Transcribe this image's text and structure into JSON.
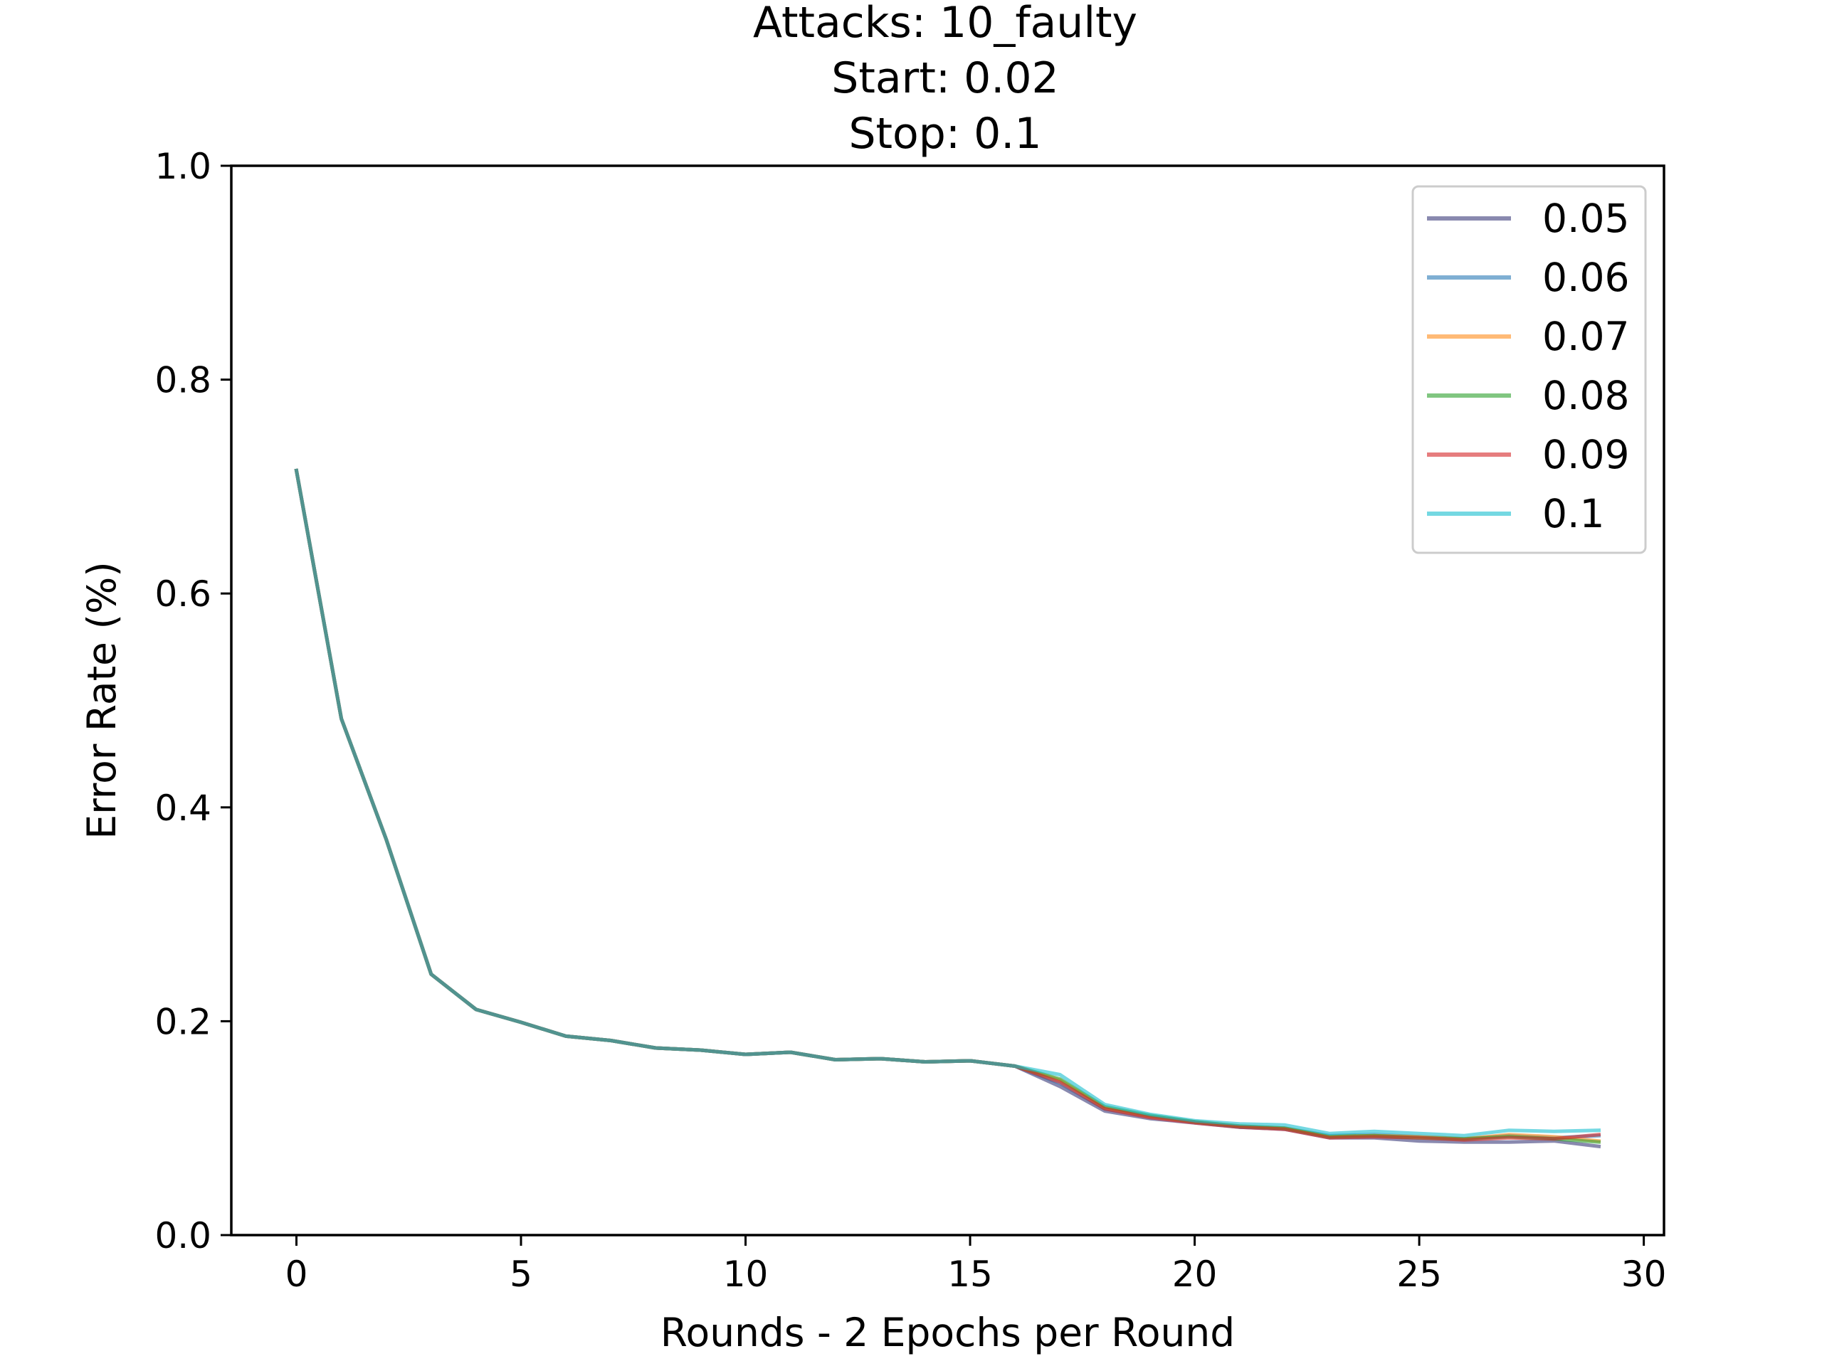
{
  "chart_data": {
    "type": "line",
    "title_lines": [
      "Attacks: 10_faulty",
      "Start: 0.02",
      "Stop: 0.1"
    ],
    "xlabel": "Rounds - 2 Epochs per Round",
    "ylabel": "Error Rate (%)",
    "xlim": [
      -1.45,
      30.45
    ],
    "ylim": [
      0,
      1
    ],
    "xticks": [
      0,
      5,
      10,
      15,
      20,
      25,
      30
    ],
    "yticks": [
      0.0,
      0.2,
      0.4,
      0.6,
      0.8,
      1.0
    ],
    "ytick_labels": [
      "0.0",
      "0.2",
      "0.4",
      "0.6",
      "0.8",
      "1.0"
    ],
    "legend_position": "top-right",
    "grid": false,
    "x": [
      0,
      1,
      2,
      3,
      4,
      5,
      6,
      7,
      8,
      9,
      10,
      11,
      12,
      13,
      14,
      15,
      16,
      17,
      18,
      19,
      20,
      21,
      22,
      23,
      24,
      25,
      26,
      27,
      28,
      29
    ],
    "series": [
      {
        "name": "0.05",
        "color": "#3b3b7a",
        "values": [
          0.715,
          0.483,
          0.37,
          0.244,
          0.211,
          0.199,
          0.186,
          0.182,
          0.175,
          0.173,
          0.169,
          0.171,
          0.164,
          0.165,
          0.162,
          0.163,
          0.158,
          0.139,
          0.116,
          0.109,
          0.105,
          0.101,
          0.099,
          0.091,
          0.091,
          0.088,
          0.087,
          0.087,
          0.088,
          0.083
        ]
      },
      {
        "name": "0.06",
        "color": "#2a7ab5",
        "values": [
          0.715,
          0.483,
          0.37,
          0.244,
          0.211,
          0.199,
          0.186,
          0.182,
          0.175,
          0.173,
          0.169,
          0.171,
          0.164,
          0.165,
          0.162,
          0.163,
          0.158,
          0.142,
          0.118,
          0.111,
          0.106,
          0.101,
          0.1,
          0.093,
          0.094,
          0.092,
          0.09,
          0.093,
          0.091,
          0.093
        ]
      },
      {
        "name": "0.07",
        "color": "#ff8c1a",
        "values": [
          0.715,
          0.483,
          0.37,
          0.244,
          0.211,
          0.199,
          0.186,
          0.182,
          0.175,
          0.173,
          0.169,
          0.171,
          0.164,
          0.165,
          0.162,
          0.163,
          0.158,
          0.145,
          0.119,
          0.111,
          0.106,
          0.102,
          0.1,
          0.092,
          0.093,
          0.092,
          0.09,
          0.094,
          0.092,
          0.088
        ]
      },
      {
        "name": "0.08",
        "color": "#2ca02c",
        "values": [
          0.715,
          0.483,
          0.37,
          0.244,
          0.211,
          0.199,
          0.186,
          0.182,
          0.175,
          0.173,
          0.169,
          0.171,
          0.164,
          0.165,
          0.162,
          0.163,
          0.158,
          0.146,
          0.12,
          0.112,
          0.106,
          0.102,
          0.1,
          0.092,
          0.093,
          0.091,
          0.09,
          0.092,
          0.09,
          0.087
        ]
      },
      {
        "name": "0.09",
        "color": "#d62728",
        "values": [
          0.715,
          0.483,
          0.37,
          0.244,
          0.211,
          0.199,
          0.186,
          0.182,
          0.175,
          0.173,
          0.169,
          0.171,
          0.164,
          0.165,
          0.162,
          0.163,
          0.158,
          0.143,
          0.118,
          0.11,
          0.105,
          0.101,
          0.099,
          0.091,
          0.092,
          0.091,
          0.089,
          0.091,
          0.09,
          0.094
        ]
      },
      {
        "name": "0.1",
        "color": "#17becf",
        "values": [
          0.715,
          0.483,
          0.37,
          0.244,
          0.211,
          0.199,
          0.186,
          0.182,
          0.175,
          0.173,
          0.169,
          0.171,
          0.164,
          0.165,
          0.162,
          0.163,
          0.158,
          0.15,
          0.122,
          0.113,
          0.107,
          0.104,
          0.103,
          0.095,
          0.097,
          0.095,
          0.093,
          0.098,
          0.097,
          0.098
        ]
      }
    ]
  }
}
